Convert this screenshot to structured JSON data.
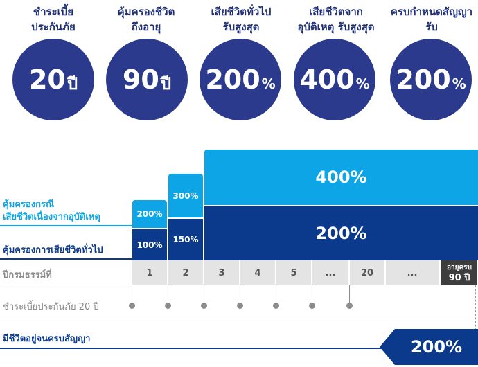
{
  "headers": [
    {
      "line1": "ชำระเบี้ย",
      "line2": "ประกันภัย"
    },
    {
      "line1": "คุ้มครองชีวิต",
      "line2": "ถึงอายุ"
    },
    {
      "line1": "เสียชีวิตทั่วไป",
      "line2": "รับสูงสุด"
    },
    {
      "line1": "เสียชีวิตจาก",
      "line2": "อุบัติเหตุ รับสูงสุด"
    },
    {
      "line1": "ครบกำหนดสัญญา",
      "line2": "รับ"
    }
  ],
  "circles": [
    {
      "value": "20",
      "unit": "ปี"
    },
    {
      "value": "90",
      "unit": "ปี"
    },
    {
      "value": "200",
      "unit": "%"
    },
    {
      "value": "400",
      "unit": "%"
    },
    {
      "value": "200",
      "unit": "%"
    }
  ],
  "legend": {
    "accident_line1": "คุ้มครองกรณี",
    "accident_line2": "เสียชีวิตเนื่องจากอุบัติเหตุ",
    "general": "คุ้มครองการเสียชีวิตทั่วไป"
  },
  "bars": {
    "y1_accident": "200%",
    "y1_general": "100%",
    "y2_accident": "300%",
    "y2_general": "150%",
    "y3_accident": "400%",
    "y3_general": "200%"
  },
  "policy_year": {
    "label": "ปีกรมธรรม์ที่",
    "years": [
      "1",
      "2",
      "3",
      "4",
      "5",
      "...",
      "20",
      "..."
    ],
    "end_line1": "อายุครบ",
    "end_line2": "90 ปี"
  },
  "premium_label": "ชำระเบี้ยประกันภัย 20 ปี",
  "maturity": {
    "label": "มีชีวิตอยู่จนครบสัญญา",
    "value": "200%"
  },
  "colors": {
    "navy": "#1f2f73",
    "circle": "#2b3a8c",
    "light_blue": "#0ea5e6",
    "dark_blue": "#0b3a8c"
  }
}
